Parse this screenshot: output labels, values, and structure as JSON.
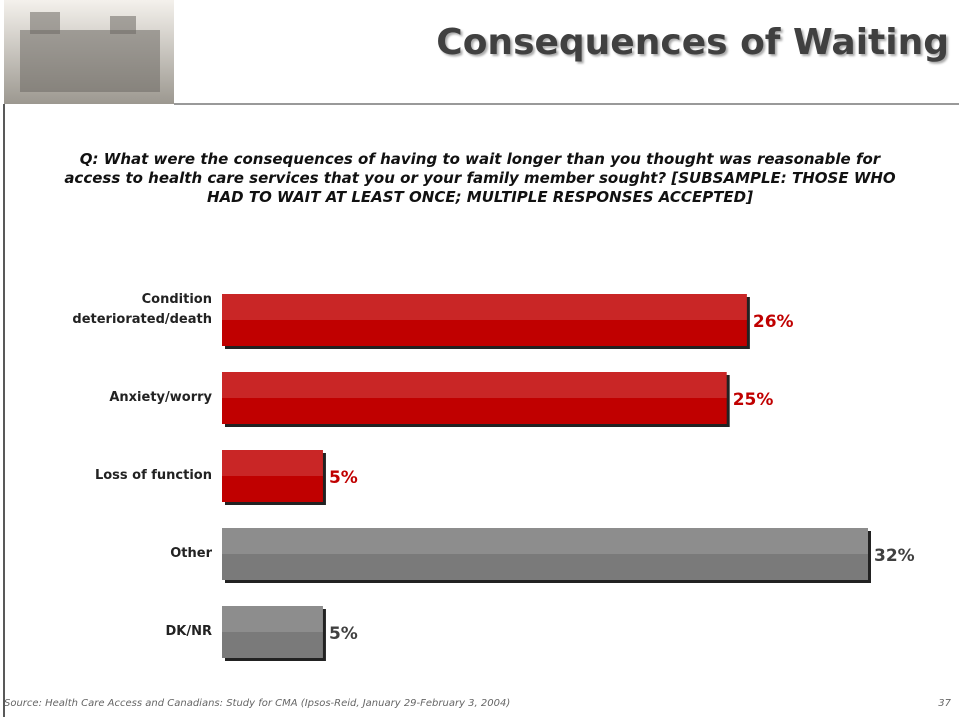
{
  "chart_data": {
    "type": "bar",
    "orientation": "horizontal",
    "title": "Consequences of Waiting",
    "subtitle": "Q: What were the consequences of having to wait longer than you thought was reasonable for access to health care services that you or your family member sought? [SUBSAMPLE:  THOSE WHO HAD TO WAIT AT LEAST ONCE; MULTIPLE RESPONSES ACCEPTED]",
    "categories": [
      "Condition deteriorated/death",
      "Anxiety/worry",
      "Loss of function",
      "Other",
      "DK/NR"
    ],
    "values": [
      26,
      25,
      5,
      32,
      5
    ],
    "value_labels": [
      "26%",
      "25%",
      "5%",
      "32%",
      "5%"
    ],
    "colors": [
      "#c00000",
      "#c00000",
      "#c00000",
      "#7a7a7a",
      "#7a7a7a"
    ],
    "value_label_colors": [
      "#c00000",
      "#c00000",
      "#c00000",
      "#404040",
      "#404040"
    ],
    "source": "Source: Health Care Access and Canadians:  Study for CMA (Ipsos-Reid, January 29-February 3, 2004)",
    "page_number": "37"
  }
}
